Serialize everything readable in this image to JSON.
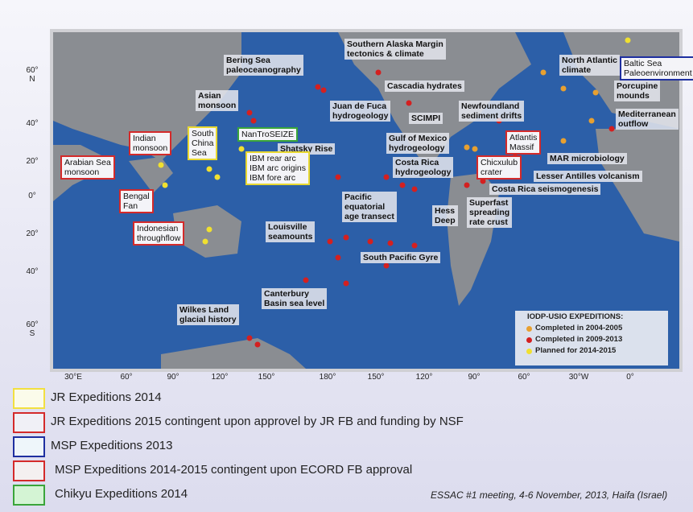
{
  "map": {
    "lat_labels": [
      "60°\nN",
      "40°",
      "20°",
      "0°",
      "20°",
      "40°",
      "60°\nS"
    ],
    "lon_labels": [
      "30°E",
      "60°",
      "90°",
      "120°",
      "150°",
      "180°",
      "150°",
      "120°",
      "90°",
      "60°",
      "30°W",
      "0°"
    ],
    "regions": [
      "Southern Alaska Margin\ntectonics & climate",
      "Bering Sea\npaleoceanography",
      "North Atlantic\nclimate",
      "Baltic Sea\nPaleoenvironment",
      "Cascadia hydrates",
      "Asian\nmonsoon",
      "Porcupine\nmounds",
      "Juan de Fuca\nhydrogeology",
      "SCIMPI",
      "Newfoundland\nsediment drifts",
      "Mediterranean\noutflow",
      "Indian\nmonsoon",
      "South\nChina\nSea",
      "NanTroSEIZE",
      "Shatsky Rise",
      "Gulf of Mexico\nhydrogeology",
      "Atlantis\nMassif",
      "Arabian Sea\nmonsoon",
      "IBM rear arc\nIBM arc origins\nIBM fore arc",
      "MAR microbiology",
      "Costa Rica\nhydrogeology",
      "Chicxulub\ncrater",
      "Lesser Antilles volcanism",
      "Costa Rica seismogenesis",
      "Bengal\nFan",
      "Pacific\nequatorial\nage transect",
      "Hess\nDeep",
      "Superfast\nspreading\nrate crust",
      "Indonesian\nthroughflow",
      "Louisville\nseamounts",
      "South Pacific Gyre",
      "Canterbury\nBasin sea level",
      "Wilkes Land\nglacial history"
    ],
    "map_legend": {
      "title": "IODP-USIO EXPEDITIONS:",
      "items": [
        "Completed in 2004-2005",
        "Completed in 2009-2013",
        "Planned for 2014-2015"
      ]
    }
  },
  "legend": [
    "JR Expeditions 2014",
    "JR Expeditions 2015 contingent upon approvel by JR FB and funding by NSF",
    "MSP Expeditions 2013",
    "MSP Expeditions 2014-2015 contingent upon ECORD FB approval",
    "Chikyu Expeditions 2014"
  ],
  "footer": "ESSAC #1 meeting, 4-6 November, 2013, Haifa (Israel)"
}
